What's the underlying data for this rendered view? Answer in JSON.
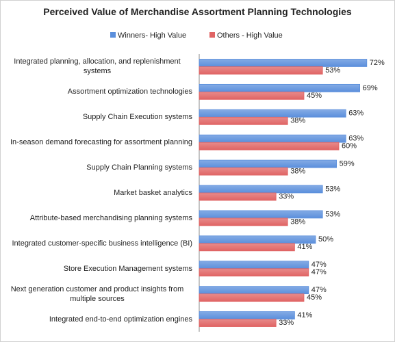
{
  "chart_data": {
    "type": "hbar",
    "title": "Perceived Value of Merchandise Assortment Planning Technologies",
    "categories": [
      "Integrated planning, allocation, and replenishment systems",
      "Assortment optimization technologies",
      "Supply Chain Execution systems",
      "In-season demand forecasting for assortment planning",
      "Supply Chain Planning systems",
      "Market basket analytics",
      "Attribute-based merchandising planning systems",
      "Integrated customer-specific business intelligence (BI)",
      "Store Execution Management systems",
      "Next generation customer and product insights from multiple sources",
      "Integrated end-to-end optimization engines"
    ],
    "series": [
      {
        "name": "Winners- High Value",
        "color": "#5b8fdc",
        "values": [
          72,
          69,
          63,
          63,
          59,
          53,
          53,
          50,
          47,
          47,
          41
        ],
        "value_labels": [
          "72%",
          "69%",
          "63%",
          "63%",
          "59%",
          "53%",
          "53%",
          "50%",
          "47%",
          "47%",
          "41%"
        ]
      },
      {
        "name": "Others - High Value",
        "color": "#e06464",
        "values": [
          53,
          45,
          38,
          60,
          38,
          33,
          38,
          41,
          47,
          45,
          33
        ],
        "value_labels": [
          "53%",
          "45%",
          "38%",
          "60%",
          "38%",
          "33%",
          "38%",
          "41%",
          "47%",
          "45%",
          "33%"
        ]
      }
    ],
    "xlim": [
      0,
      80
    ],
    "legend": "top"
  }
}
